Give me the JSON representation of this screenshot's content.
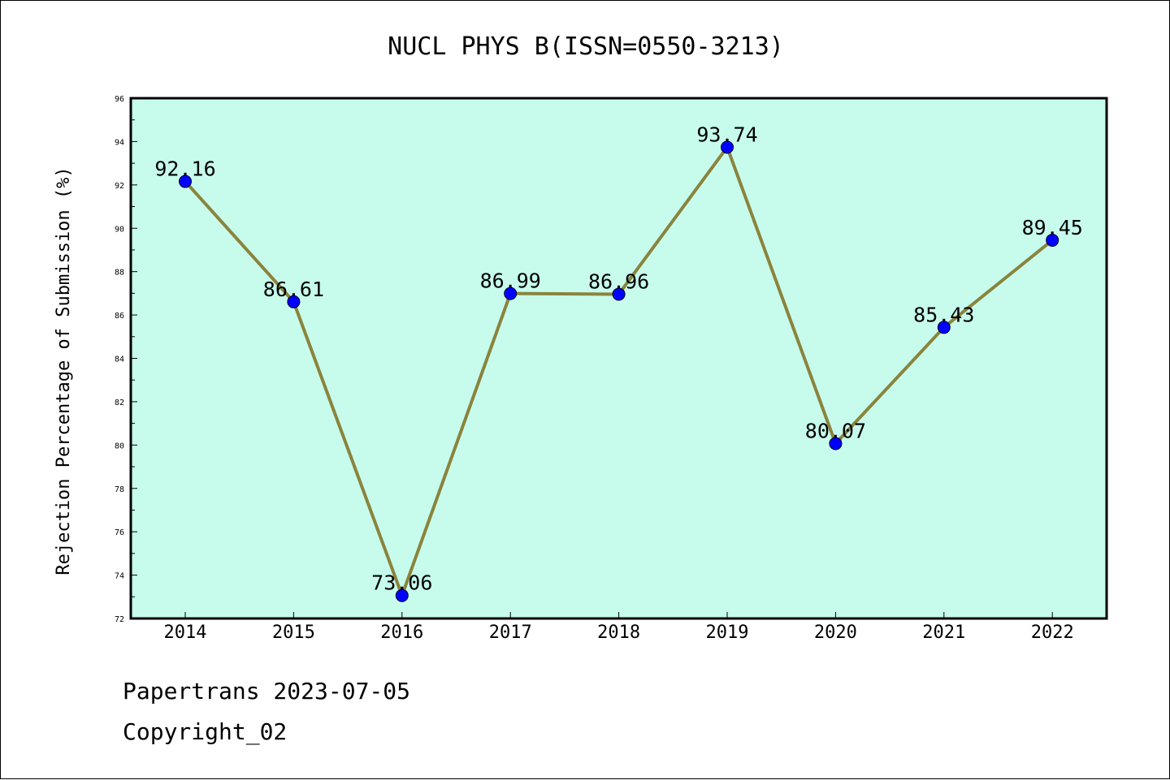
{
  "chart_data": {
    "type": "line",
    "title": "NUCL PHYS B(ISSN=0550-3213)",
    "ylabel": "Rejection Percentage of Submission (%)",
    "xlabel": "",
    "categories": [
      "2014",
      "2015",
      "2016",
      "2017",
      "2018",
      "2019",
      "2020",
      "2021",
      "2022"
    ],
    "values": [
      92.16,
      86.61,
      73.06,
      86.99,
      86.96,
      93.74,
      80.07,
      85.43,
      89.45
    ],
    "data_labels": [
      "92.16",
      "86.61",
      "73.06",
      "86.99",
      "86.96",
      "93.74",
      "80.07",
      "85.43",
      "89.45"
    ],
    "ylim": [
      72,
      96
    ],
    "yticks": [
      "72",
      "74",
      "76",
      "78",
      "80",
      "82",
      "84",
      "86",
      "88",
      "90",
      "92",
      "94",
      "96"
    ],
    "grid": false,
    "colors": {
      "plot_background": "#c7fced",
      "line": "#8a843c",
      "marker": "#0000ff"
    }
  },
  "footer": {
    "line1": "Papertrans 2023-07-05",
    "line2": "Copyright_02"
  }
}
